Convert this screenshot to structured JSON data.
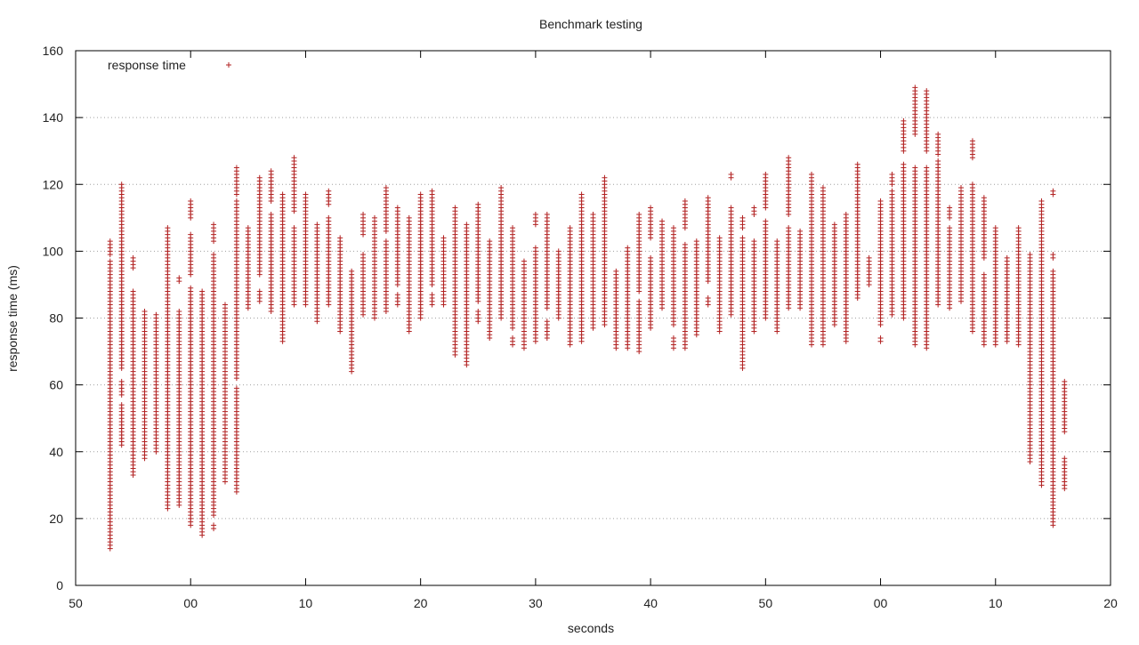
{
  "chart_data": {
    "type": "scatter",
    "title": "Benchmark testing",
    "xlabel": "seconds",
    "ylabel": "response time (ms)",
    "xlim": [
      0,
      90
    ],
    "ylim": [
      0,
      160
    ],
    "x_ticks": [
      {
        "v": 0,
        "label": "50"
      },
      {
        "v": 10,
        "label": "00"
      },
      {
        "v": 20,
        "label": "10"
      },
      {
        "v": 30,
        "label": "20"
      },
      {
        "v": 40,
        "label": "30"
      },
      {
        "v": 50,
        "label": "40"
      },
      {
        "v": 60,
        "label": "50"
      },
      {
        "v": 70,
        "label": "00"
      },
      {
        "v": 80,
        "label": "10"
      },
      {
        "v": 90,
        "label": "20"
      }
    ],
    "y_ticks": [
      0,
      20,
      40,
      60,
      80,
      100,
      120,
      140,
      160
    ],
    "grid": "horizontal-dotted",
    "legend_position": "top-left",
    "marker": "+",
    "marker_color": "#b22222",
    "series": [
      {
        "name": "response time",
        "columns": [
          {
            "x": 3,
            "ranges": [
              [
                11,
                97
              ],
              [
                99,
                103
              ]
            ]
          },
          {
            "x": 4,
            "ranges": [
              [
                42,
                54
              ],
              [
                57,
                61
              ],
              [
                65,
                120
              ]
            ]
          },
          {
            "x": 5,
            "ranges": [
              [
                33,
                88
              ],
              [
                95,
                98
              ]
            ]
          },
          {
            "x": 6,
            "ranges": [
              [
                38,
                82
              ]
            ]
          },
          {
            "x": 7,
            "ranges": [
              [
                40,
                81
              ]
            ]
          },
          {
            "x": 8,
            "ranges": [
              [
                23,
                107
              ]
            ]
          },
          {
            "x": 9,
            "ranges": [
              [
                24,
                82
              ],
              [
                91,
                92
              ]
            ]
          },
          {
            "x": 10,
            "ranges": [
              [
                18,
                89
              ],
              [
                93,
                105
              ],
              [
                110,
                115
              ]
            ]
          },
          {
            "x": 11,
            "ranges": [
              [
                15,
                88
              ]
            ]
          },
          {
            "x": 12,
            "ranges": [
              [
                17,
                18
              ],
              [
                21,
                99
              ],
              [
                103,
                108
              ]
            ]
          },
          {
            "x": 13,
            "ranges": [
              [
                31,
                84
              ]
            ]
          },
          {
            "x": 14,
            "ranges": [
              [
                28,
                59
              ],
              [
                62,
                115
              ],
              [
                117,
                125
              ]
            ]
          },
          {
            "x": 15,
            "ranges": [
              [
                83,
                107
              ]
            ]
          },
          {
            "x": 16,
            "ranges": [
              [
                85,
                88
              ],
              [
                93,
                122
              ]
            ]
          },
          {
            "x": 17,
            "ranges": [
              [
                82,
                111
              ],
              [
                115,
                124
              ]
            ]
          },
          {
            "x": 18,
            "ranges": [
              [
                73,
                117
              ]
            ]
          },
          {
            "x": 19,
            "ranges": [
              [
                84,
                107
              ],
              [
                112,
                128
              ]
            ]
          },
          {
            "x": 20,
            "ranges": [
              [
                84,
                117
              ]
            ]
          },
          {
            "x": 21,
            "ranges": [
              [
                79,
                108
              ]
            ]
          },
          {
            "x": 22,
            "ranges": [
              [
                84,
                110
              ],
              [
                114,
                118
              ]
            ]
          },
          {
            "x": 23,
            "ranges": [
              [
                76,
                104
              ]
            ]
          },
          {
            "x": 24,
            "ranges": [
              [
                64,
                94
              ]
            ]
          },
          {
            "x": 25,
            "ranges": [
              [
                81,
                99
              ],
              [
                105,
                111
              ]
            ]
          },
          {
            "x": 26,
            "ranges": [
              [
                80,
                110
              ]
            ]
          },
          {
            "x": 27,
            "ranges": [
              [
                82,
                103
              ],
              [
                106,
                119
              ]
            ]
          },
          {
            "x": 28,
            "ranges": [
              [
                84,
                87
              ],
              [
                90,
                113
              ]
            ]
          },
          {
            "x": 29,
            "ranges": [
              [
                76,
                110
              ]
            ]
          },
          {
            "x": 30,
            "ranges": [
              [
                80,
                117
              ]
            ]
          },
          {
            "x": 31,
            "ranges": [
              [
                84,
                87
              ],
              [
                90,
                118
              ]
            ]
          },
          {
            "x": 32,
            "ranges": [
              [
                84,
                104
              ]
            ]
          },
          {
            "x": 33,
            "ranges": [
              [
                69,
                113
              ]
            ]
          },
          {
            "x": 34,
            "ranges": [
              [
                66,
                108
              ]
            ]
          },
          {
            "x": 35,
            "ranges": [
              [
                79,
                82
              ],
              [
                85,
                114
              ]
            ]
          },
          {
            "x": 36,
            "ranges": [
              [
                74,
                103
              ]
            ]
          },
          {
            "x": 37,
            "ranges": [
              [
                80,
                119
              ]
            ]
          },
          {
            "x": 38,
            "ranges": [
              [
                72,
                74
              ],
              [
                77,
                107
              ]
            ]
          },
          {
            "x": 39,
            "ranges": [
              [
                71,
                97
              ]
            ]
          },
          {
            "x": 40,
            "ranges": [
              [
                73,
                101
              ],
              [
                108,
                111
              ]
            ]
          },
          {
            "x": 41,
            "ranges": [
              [
                74,
                79
              ],
              [
                83,
                111
              ]
            ]
          },
          {
            "x": 42,
            "ranges": [
              [
                80,
                100
              ]
            ]
          },
          {
            "x": 43,
            "ranges": [
              [
                72,
                107
              ]
            ]
          },
          {
            "x": 44,
            "ranges": [
              [
                73,
                117
              ]
            ]
          },
          {
            "x": 45,
            "ranges": [
              [
                77,
                111
              ]
            ]
          },
          {
            "x": 46,
            "ranges": [
              [
                78,
                122
              ]
            ]
          },
          {
            "x": 47,
            "ranges": [
              [
                71,
                94
              ]
            ]
          },
          {
            "x": 48,
            "ranges": [
              [
                71,
                101
              ]
            ]
          },
          {
            "x": 49,
            "ranges": [
              [
                70,
                85
              ],
              [
                88,
                111
              ]
            ]
          },
          {
            "x": 50,
            "ranges": [
              [
                77,
                98
              ],
              [
                104,
                113
              ]
            ]
          },
          {
            "x": 51,
            "ranges": [
              [
                83,
                109
              ]
            ]
          },
          {
            "x": 52,
            "ranges": [
              [
                71,
                74
              ],
              [
                78,
                107
              ]
            ]
          },
          {
            "x": 53,
            "ranges": [
              [
                71,
                102
              ],
              [
                107,
                115
              ]
            ]
          },
          {
            "x": 54,
            "ranges": [
              [
                75,
                103
              ]
            ]
          },
          {
            "x": 55,
            "ranges": [
              [
                84,
                86
              ],
              [
                91,
                116
              ]
            ]
          },
          {
            "x": 56,
            "ranges": [
              [
                76,
                104
              ]
            ]
          },
          {
            "x": 57,
            "ranges": [
              [
                81,
                113
              ],
              [
                122,
                123
              ]
            ]
          },
          {
            "x": 58,
            "ranges": [
              [
                65,
                104
              ],
              [
                107,
                110
              ]
            ]
          },
          {
            "x": 59,
            "ranges": [
              [
                76,
                103
              ],
              [
                111,
                113
              ]
            ]
          },
          {
            "x": 60,
            "ranges": [
              [
                80,
                109
              ],
              [
                113,
                123
              ]
            ]
          },
          {
            "x": 61,
            "ranges": [
              [
                76,
                103
              ]
            ]
          },
          {
            "x": 62,
            "ranges": [
              [
                83,
                107
              ],
              [
                111,
                128
              ]
            ]
          },
          {
            "x": 63,
            "ranges": [
              [
                83,
                106
              ]
            ]
          },
          {
            "x": 64,
            "ranges": [
              [
                72,
                123
              ]
            ]
          },
          {
            "x": 65,
            "ranges": [
              [
                72,
                119
              ]
            ]
          },
          {
            "x": 66,
            "ranges": [
              [
                78,
                108
              ]
            ]
          },
          {
            "x": 67,
            "ranges": [
              [
                73,
                111
              ]
            ]
          },
          {
            "x": 68,
            "ranges": [
              [
                86,
                126
              ]
            ]
          },
          {
            "x": 69,
            "ranges": [
              [
                90,
                98
              ]
            ]
          },
          {
            "x": 70,
            "ranges": [
              [
                73,
                74
              ],
              [
                78,
                115
              ]
            ]
          },
          {
            "x": 71,
            "ranges": [
              [
                81,
                118
              ],
              [
                120,
                123
              ]
            ]
          },
          {
            "x": 72,
            "ranges": [
              [
                80,
                126
              ],
              [
                130,
                139
              ]
            ]
          },
          {
            "x": 73,
            "ranges": [
              [
                72,
                125
              ],
              [
                135,
                149
              ]
            ]
          },
          {
            "x": 74,
            "ranges": [
              [
                71,
                125
              ],
              [
                130,
                148
              ]
            ]
          },
          {
            "x": 75,
            "ranges": [
              [
                84,
                127
              ],
              [
                129,
                135
              ]
            ]
          },
          {
            "x": 76,
            "ranges": [
              [
                83,
                107
              ],
              [
                110,
                113
              ]
            ]
          },
          {
            "x": 77,
            "ranges": [
              [
                85,
                119
              ]
            ]
          },
          {
            "x": 78,
            "ranges": [
              [
                76,
                120
              ],
              [
                128,
                133
              ]
            ]
          },
          {
            "x": 79,
            "ranges": [
              [
                72,
                93
              ],
              [
                98,
                116
              ]
            ]
          },
          {
            "x": 80,
            "ranges": [
              [
                72,
                107
              ]
            ]
          },
          {
            "x": 81,
            "ranges": [
              [
                73,
                98
              ]
            ]
          },
          {
            "x": 82,
            "ranges": [
              [
                72,
                107
              ]
            ]
          },
          {
            "x": 83,
            "ranges": [
              [
                37,
                99
              ]
            ]
          },
          {
            "x": 84,
            "ranges": [
              [
                30,
                115
              ]
            ]
          },
          {
            "x": 85,
            "ranges": [
              [
                18,
                94
              ],
              [
                98,
                99
              ],
              [
                117,
                118
              ]
            ]
          },
          {
            "x": 86,
            "ranges": [
              [
                29,
                38
              ],
              [
                46,
                61
              ]
            ]
          }
        ]
      }
    ]
  }
}
